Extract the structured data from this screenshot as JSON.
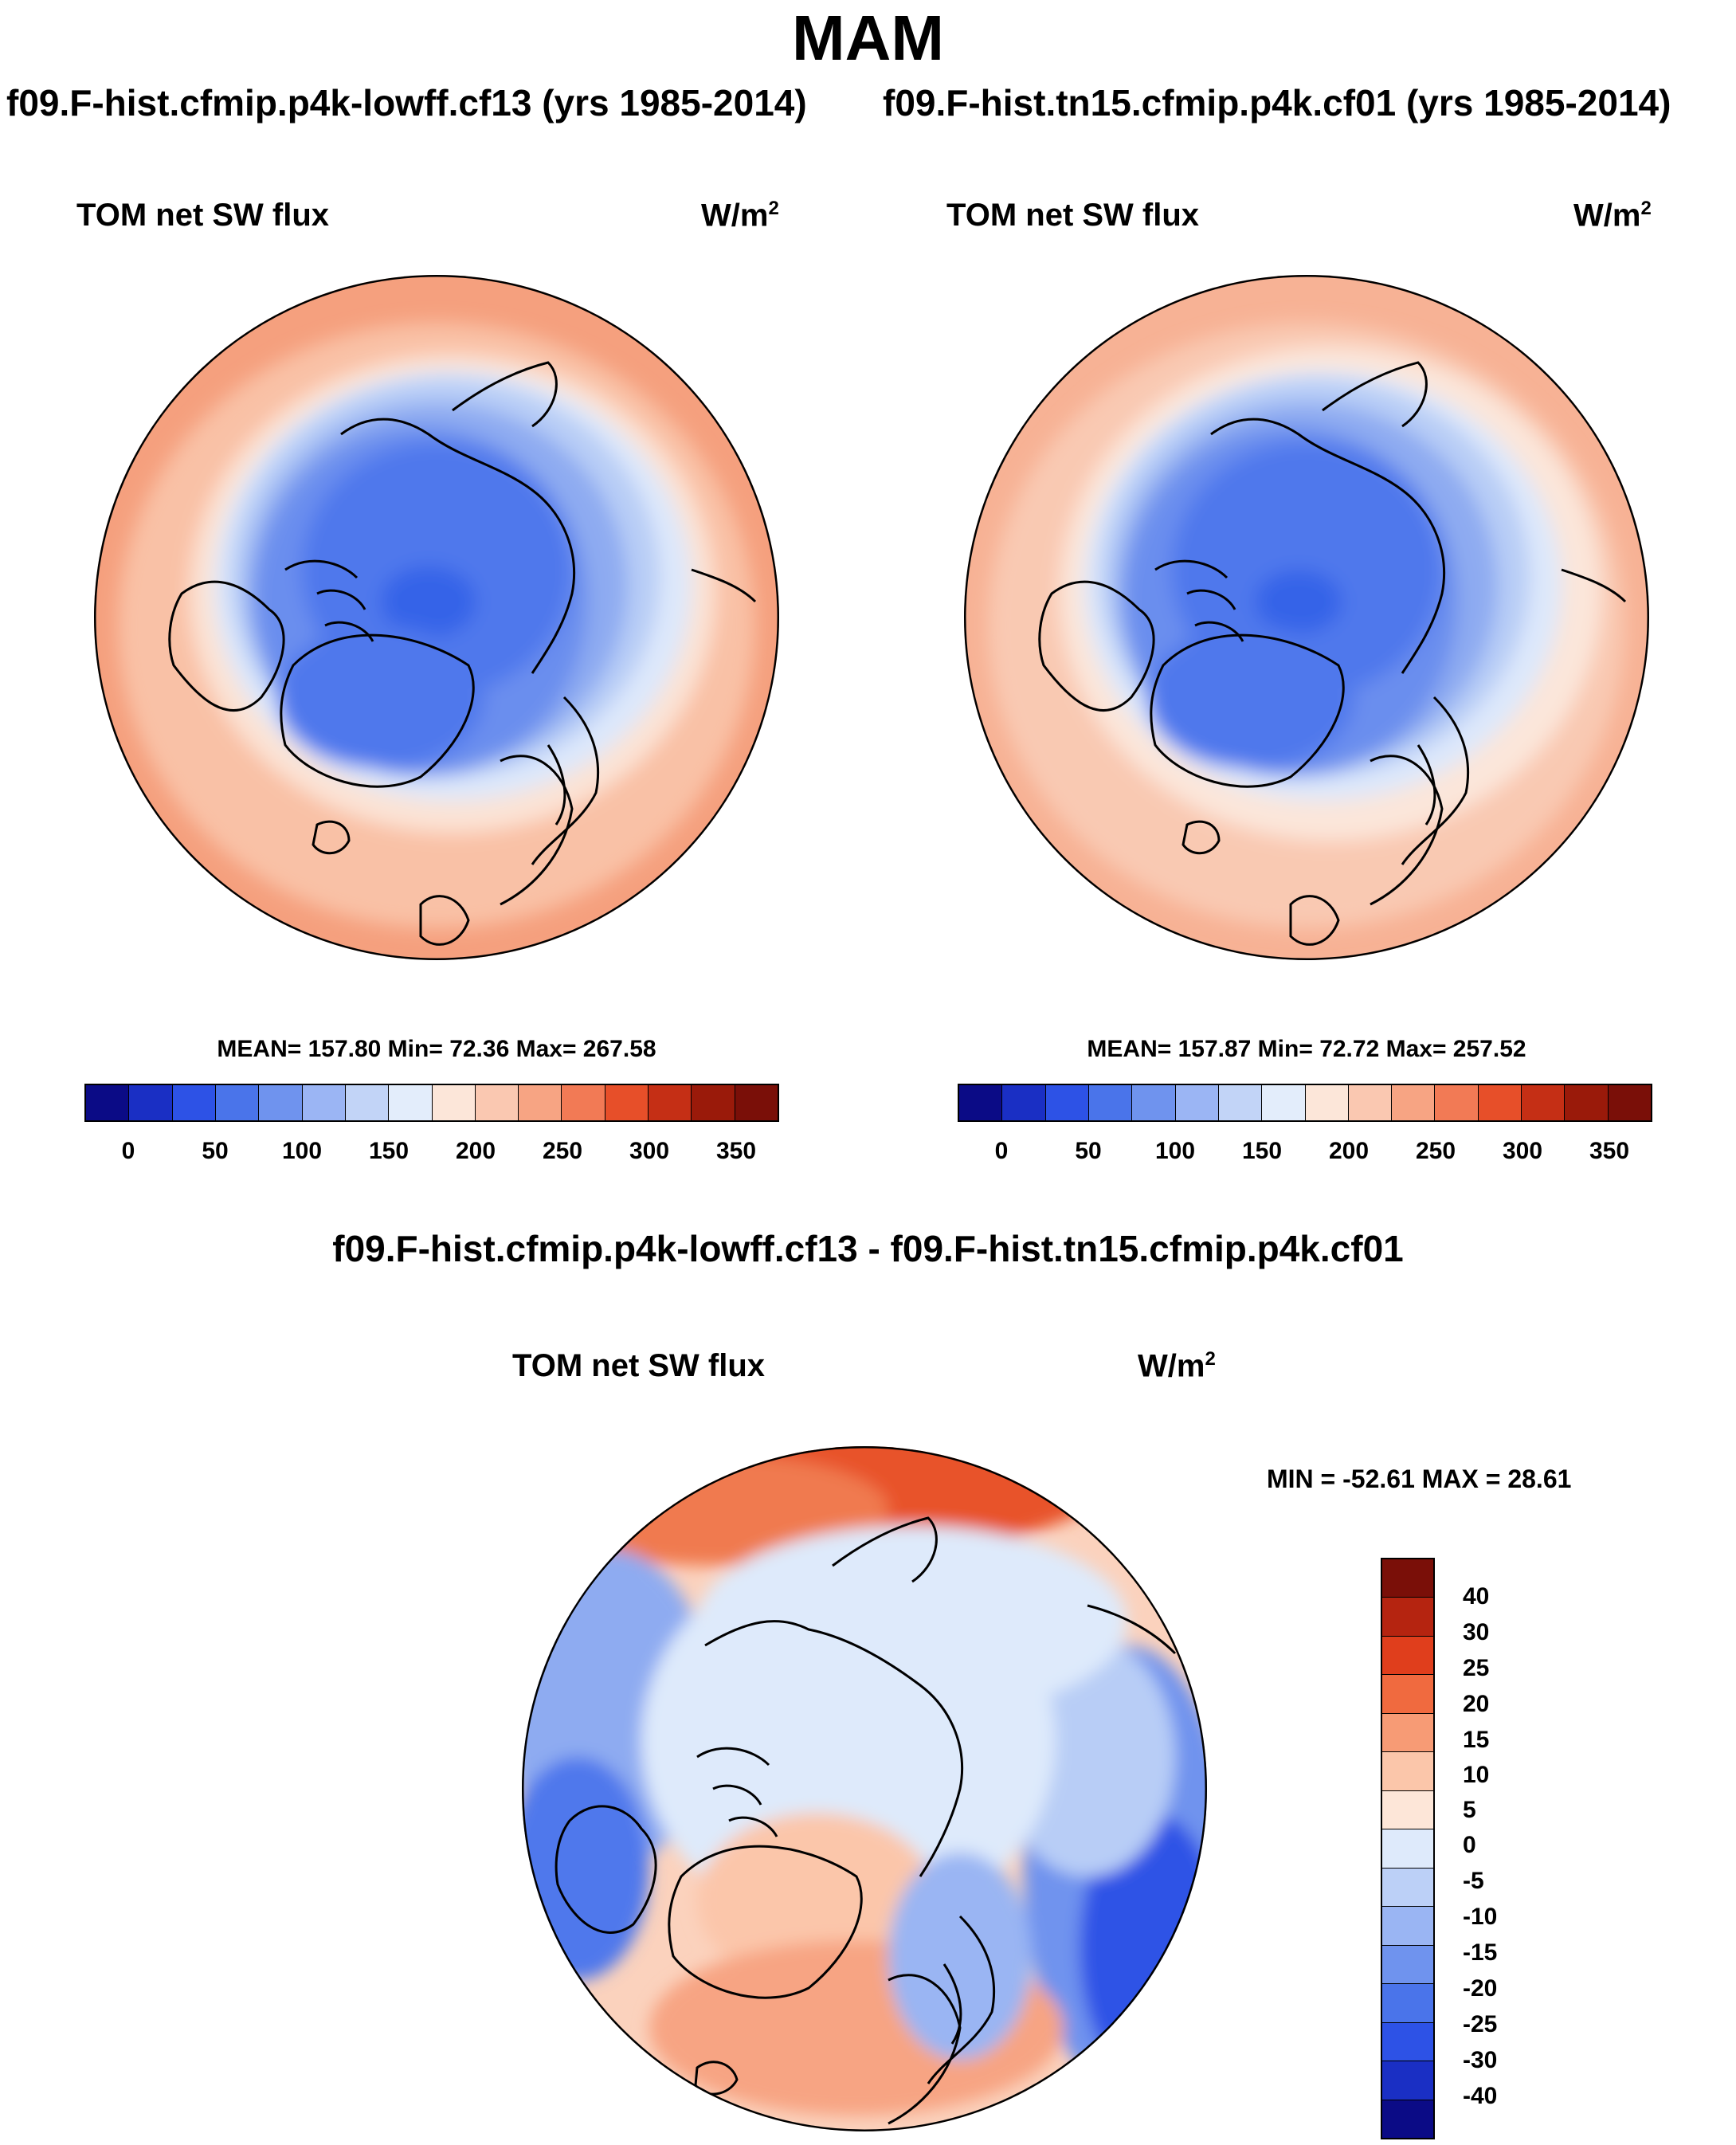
{
  "title": "MAM",
  "panels": [
    {
      "case_title": "f09.F-hist.cfmip.p4k-lowff.cf13 (yrs 1985-2014)",
      "variable": "TOM net SW flux",
      "units_base": "W/m",
      "units_exp": "2",
      "stats_text": "MEAN= 157.80  Min=  72.36  Max= 267.58",
      "mean": 157.8,
      "min": 72.36,
      "max": 267.58,
      "colorbar_labels": [
        "0",
        "50",
        "100",
        "150",
        "200",
        "250",
        "300",
        "350"
      ]
    },
    {
      "case_title": "f09.F-hist.tn15.cfmip.p4k.cf01 (yrs 1985-2014)",
      "variable": "TOM net SW flux",
      "units_base": "W/m",
      "units_exp": "2",
      "stats_text": "MEAN= 157.87  Min=  72.72  Max= 257.52",
      "mean": 157.87,
      "min": 72.72,
      "max": 257.52,
      "colorbar_labels": [
        "0",
        "50",
        "100",
        "150",
        "200",
        "250",
        "300",
        "350"
      ]
    }
  ],
  "difference": {
    "title": "f09.F-hist.cfmip.p4k-lowff.cf13 - f09.F-hist.tn15.cfmip.p4k.cf01",
    "variable": "TOM net SW flux",
    "units_base": "W/m",
    "units_exp": "2",
    "minmax_text": "MIN = -52.61 MAX =  28.61",
    "min": -52.61,
    "max": 28.61,
    "colorbar_labels": [
      "40",
      "30",
      "25",
      "20",
      "15",
      "10",
      "5",
      "0",
      "-5",
      "-10",
      "-15",
      "-20",
      "-25",
      "-30",
      "-40"
    ]
  },
  "palette_abs": [
    "#0b0b86",
    "#1a2fc4",
    "#2d52e6",
    "#4a74ea",
    "#6f93ee",
    "#9bb5f4",
    "#c2d4f7",
    "#e3edfb",
    "#fce6d9",
    "#fac8b1",
    "#f7a483",
    "#f27a55",
    "#e74f29",
    "#c52f15",
    "#9a1a0a",
    "#7a0f08"
  ],
  "palette_diff": [
    "#7a0f08",
    "#b52410",
    "#e03e1c",
    "#f06a3f",
    "#f79b75",
    "#fbc6aa",
    "#fde6d8",
    "#deeafb",
    "#bcd0f7",
    "#9ab5f3",
    "#6f93ee",
    "#4a74ea",
    "#2d52e6",
    "#1a2fc4",
    "#0b0b86"
  ]
}
